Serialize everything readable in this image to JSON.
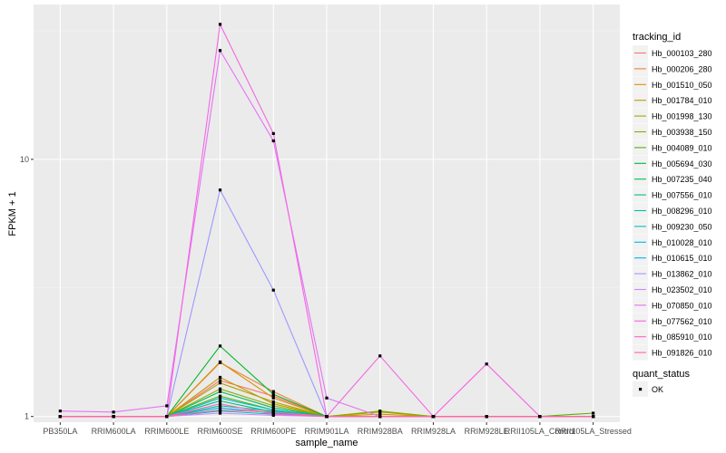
{
  "chart_data": {
    "type": "line",
    "xlabel": "sample_name",
    "ylabel": "FPKM + 1",
    "y_scale": "log10",
    "ylim": [
      0.95,
      40
    ],
    "y_ticks": [
      1,
      10
    ],
    "y_tick_labels": [
      "1",
      "10"
    ],
    "categories": [
      "PB350LA",
      "RRIM600LA",
      "RRIM600LE",
      "RRIM600SE",
      "RRIM600PE",
      "RRIM901LA",
      "RRIM928BA",
      "RRIM928LA",
      "RRIM928LE",
      "RRII105LA_Control",
      "RRII105LA_Stressed"
    ],
    "legend_title": "tracking_id",
    "series": [
      {
        "name": "Hb_000103_280",
        "color": "#F8766D",
        "values": [
          1,
          1,
          1,
          1.38,
          1.2,
          1,
          1,
          1,
          1,
          1,
          1
        ]
      },
      {
        "name": "Hb_000206_280",
        "color": "#EB8335",
        "values": [
          1,
          1,
          1,
          1.62,
          1.25,
          1,
          1,
          1,
          1,
          1,
          1
        ]
      },
      {
        "name": "Hb_001510_050",
        "color": "#DA8F00",
        "values": [
          1,
          1,
          1,
          1.63,
          1.18,
          1,
          1.02,
          1,
          1,
          1,
          1
        ]
      },
      {
        "name": "Hb_001784_010",
        "color": "#C49A00",
        "values": [
          1,
          1,
          1,
          1.42,
          1.12,
          1,
          1,
          1,
          1,
          1,
          1
        ]
      },
      {
        "name": "Hb_001998_130",
        "color": "#A9A400",
        "values": [
          1,
          1,
          1,
          1.35,
          1.14,
          1,
          1.04,
          1,
          1,
          1,
          1
        ]
      },
      {
        "name": "Hb_003938_150",
        "color": "#86AC00",
        "values": [
          1,
          1,
          1,
          1.28,
          1.1,
          1,
          1.05,
          1,
          1,
          1,
          1
        ]
      },
      {
        "name": "Hb_004089_010",
        "color": "#53B400",
        "values": [
          1,
          1,
          1,
          1.2,
          1.06,
          1,
          1,
          1,
          1,
          1,
          1.03
        ]
      },
      {
        "name": "Hb_005694_030",
        "color": "#00B82B",
        "values": [
          1,
          1,
          1,
          1.88,
          1.22,
          1,
          1,
          1,
          1,
          1,
          1
        ]
      },
      {
        "name": "Hb_007235_040",
        "color": "#00BC59",
        "values": [
          1,
          1,
          1,
          1.25,
          1.08,
          1,
          1,
          1,
          1,
          1,
          1
        ]
      },
      {
        "name": "Hb_007556_010",
        "color": "#00BF7D",
        "values": [
          1,
          1,
          1,
          1.15,
          1.04,
          1,
          1,
          1,
          1,
          1,
          1
        ]
      },
      {
        "name": "Hb_008296_010",
        "color": "#00C09E",
        "values": [
          1,
          1,
          1,
          1.1,
          1.05,
          1,
          1,
          1,
          1,
          1,
          1
        ]
      },
      {
        "name": "Hb_009230_050",
        "color": "#00BFBC",
        "values": [
          1,
          1,
          1,
          1.05,
          1.02,
          1,
          1,
          1,
          1,
          1,
          1
        ]
      },
      {
        "name": "Hb_010028_010",
        "color": "#00BAD8",
        "values": [
          1,
          1,
          1,
          1.18,
          1.06,
          1,
          1,
          1,
          1,
          1,
          1
        ]
      },
      {
        "name": "Hb_010615_010",
        "color": "#00B1F0",
        "values": [
          1,
          1,
          1,
          1.08,
          1.03,
          1,
          1,
          1,
          1,
          1,
          1
        ]
      },
      {
        "name": "Hb_013862_010",
        "color": "#9D98FF",
        "values": [
          1,
          1,
          1,
          7.6,
          3.1,
          1,
          1,
          1,
          1,
          1,
          1
        ]
      },
      {
        "name": "Hb_023502_010",
        "color": "#CE86FF",
        "values": [
          1,
          1,
          1,
          1.03,
          1.01,
          1,
          1,
          1,
          1,
          1,
          1
        ]
      },
      {
        "name": "Hb_070850_010",
        "color": "#E472F5",
        "values": [
          1.05,
          1.04,
          1.1,
          26.5,
          11.8,
          1.18,
          1,
          1,
          1,
          1,
          1
        ]
      },
      {
        "name": "Hb_077562_010",
        "color": "#F566E2",
        "values": [
          1,
          1,
          1,
          33.5,
          12.6,
          1,
          1.72,
          1,
          1.6,
          1,
          1
        ]
      },
      {
        "name": "Hb_085910_010",
        "color": "#FF62BC",
        "values": [
          1,
          1,
          1,
          1.12,
          1.02,
          1,
          1,
          1,
          1,
          1,
          1
        ]
      },
      {
        "name": "Hb_091826_010",
        "color": "#FF6893",
        "values": [
          1,
          1,
          1,
          1.06,
          1.04,
          1,
          1,
          1,
          1,
          1,
          1
        ]
      }
    ],
    "shape_legend": {
      "title": "quant_status",
      "items": [
        {
          "label": "OK"
        }
      ]
    },
    "grid": true
  }
}
